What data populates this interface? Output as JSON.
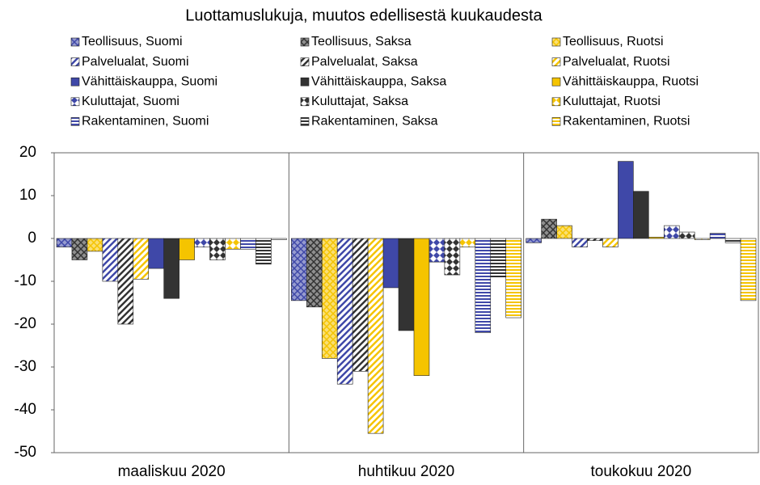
{
  "chart_data": {
    "type": "bar",
    "title": "Luottamuslukuja, muutos edellisestä kuukaudesta",
    "categories": [
      "maaliskuu 2020",
      "huhtikuu 2020",
      "toukokuu 2020"
    ],
    "ylim": [
      -50,
      20
    ],
    "yticks": [
      -50,
      -40,
      -30,
      -20,
      -10,
      0,
      10,
      20
    ],
    "series": [
      {
        "name": "Teollisuus, Suomi",
        "color": "#3f48a8",
        "values": [
          -2,
          -14.5,
          -1
        ]
      },
      {
        "name": "Teollisuus, Saksa",
        "color": "#333333",
        "values": [
          -5,
          -16,
          4.5
        ]
      },
      {
        "name": "Teollisuus, Ruotsi",
        "color": "#f5c400",
        "values": [
          -3,
          -28,
          3
        ]
      },
      {
        "name": "Palvelualat, Suomi",
        "color": "#3f48a8",
        "values": [
          -10,
          -34,
          -2
        ]
      },
      {
        "name": "Palvelualat, Saksa",
        "color": "#333333",
        "values": [
          -20,
          -31,
          -0.5
        ]
      },
      {
        "name": "Palvelualat, Ruotsi",
        "color": "#f5c400",
        "values": [
          -9.5,
          -45.5,
          -2
        ]
      },
      {
        "name": "Vähittäiskauppa, Suomi",
        "color": "#3f48a8",
        "values": [
          -7,
          -11.5,
          18
        ]
      },
      {
        "name": "Vähittäiskauppa, Saksa",
        "color": "#333333",
        "values": [
          -14,
          -21.5,
          11
        ]
      },
      {
        "name": "Vähittäiskauppa, Ruotsi",
        "color": "#f5c400",
        "values": [
          -5,
          -32,
          0.3
        ]
      },
      {
        "name": "Kuluttajat, Suomi",
        "color": "#3f48a8",
        "values": [
          -2,
          -5.5,
          3
        ]
      },
      {
        "name": "Kuluttajat, Saksa",
        "color": "#333333",
        "values": [
          -5,
          -8.5,
          1.5
        ]
      },
      {
        "name": "Kuluttajat, Ruotsi",
        "color": "#f5c400",
        "values": [
          -2.5,
          -2,
          -0.3
        ]
      },
      {
        "name": "Rakentaminen, Suomi",
        "color": "#3f48a8",
        "values": [
          -2.5,
          -22,
          1.2
        ]
      },
      {
        "name": "Rakentaminen, Saksa",
        "color": "#333333",
        "values": [
          -6,
          -9,
          -1
        ]
      },
      {
        "name": "Rakentaminen, Ruotsi",
        "color": "#f5c400",
        "values": [
          -0.3,
          -18.5,
          -14.5
        ]
      }
    ]
  }
}
